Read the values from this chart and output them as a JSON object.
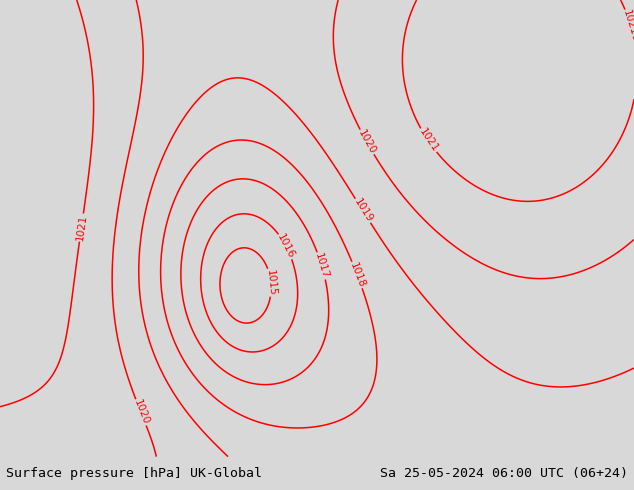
{
  "title_left": "Surface pressure [hPa] UK-Global",
  "title_right": "Sa 25-05-2024 06:00 UTC (06+24)",
  "bg_color": "#d8d8d8",
  "land_color": "#c8f0a0",
  "sea_color": "#d8d8d8",
  "border_color": "#8899aa",
  "isobar_color": "#ff0000",
  "label_color": "#ff0000",
  "bottom_bg": "#ffffff",
  "font_size_title": 9.5,
  "isobar_linewidth": 1.1,
  "isobar_label_fontsize": 7.5,
  "levels": [
    1015,
    1016,
    1017,
    1018,
    1019,
    1020,
    1021
  ],
  "lon_min": -14.0,
  "lon_max": 30.0,
  "lat_min": 46.0,
  "lat_max": 62.5,
  "low_lon": 2.5,
  "low_lat": 52.3,
  "low_val": 1015.0
}
